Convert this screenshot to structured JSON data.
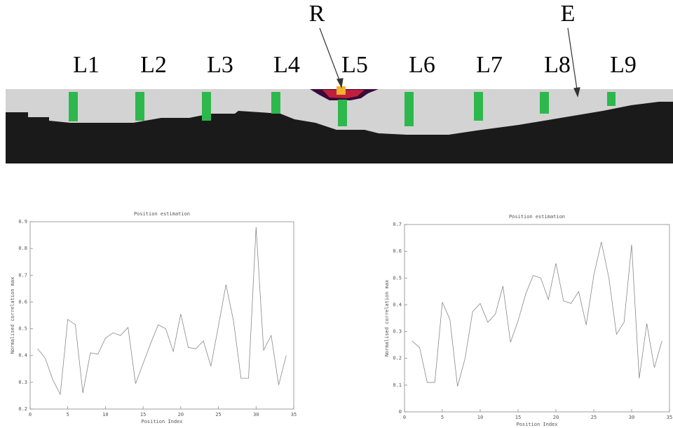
{
  "diagram": {
    "labels": [
      "L1",
      "L2",
      "L3",
      "L4",
      "L5",
      "L6",
      "L7",
      "L8",
      "L9"
    ],
    "reference_label": "R",
    "edge_label": "E"
  },
  "chart_data": [
    {
      "type": "line",
      "title": "Position estimation",
      "x_label": "Position Index",
      "y_label": "Normalised correlation max",
      "x": [
        1,
        2,
        3,
        4,
        5,
        6,
        7,
        8,
        9,
        10,
        11,
        12,
        13,
        14,
        15,
        16,
        17,
        18,
        19,
        20,
        21,
        22,
        23,
        24,
        25,
        26,
        27,
        28,
        29,
        30,
        31,
        32,
        33,
        34
      ],
      "series": [
        {
          "color": "#888888",
          "values": [
            0.425,
            0.39,
            0.31,
            0.255,
            0.535,
            0.515,
            0.26,
            0.41,
            0.405,
            0.465,
            0.485,
            0.475,
            0.505,
            0.295,
            0.37,
            0.445,
            0.515,
            0.5,
            0.415,
            0.555,
            0.43,
            0.425,
            0.455,
            0.36,
            0.51,
            0.665,
            0.53,
            0.315,
            0.315,
            0.88,
            0.42,
            0.475,
            0.29,
            0.4
          ]
        }
      ],
      "xlim": [
        0,
        35
      ],
      "xticks": [
        0,
        5,
        10,
        15,
        20,
        25,
        30,
        35
      ],
      "ylim": [
        0.2,
        0.9
      ],
      "yticks": [
        0.2,
        0.3,
        0.4,
        0.5,
        0.6,
        0.7,
        0.8,
        0.9
      ]
    },
    {
      "type": "line",
      "title": "Position estimation",
      "x_label": "Position Index",
      "y_label": "Normalised correlation max",
      "x": [
        1,
        2,
        3,
        4,
        5,
        6,
        7,
        8,
        9,
        10,
        11,
        12,
        13,
        14,
        15,
        16,
        17,
        18,
        19,
        20,
        21,
        22,
        23,
        24,
        25,
        26,
        27,
        28,
        29,
        30,
        31,
        32,
        33,
        34
      ],
      "series": [
        {
          "color": "#888888",
          "values": [
            0.265,
            0.24,
            0.11,
            0.11,
            0.41,
            0.345,
            0.095,
            0.2,
            0.375,
            0.405,
            0.335,
            0.365,
            0.47,
            0.26,
            0.34,
            0.44,
            0.51,
            0.5,
            0.42,
            0.555,
            0.415,
            0.405,
            0.45,
            0.325,
            0.51,
            0.635,
            0.5,
            0.29,
            0.335,
            0.625,
            0.125,
            0.33,
            0.165,
            0.265
          ]
        }
      ],
      "xlim": [
        0,
        35
      ],
      "xticks": [
        0,
        5,
        10,
        15,
        20,
        25,
        30,
        35
      ],
      "ylim": [
        0,
        0.7
      ],
      "yticks": [
        0,
        0.1,
        0.2,
        0.3,
        0.4,
        0.5,
        0.6,
        0.7
      ]
    }
  ]
}
